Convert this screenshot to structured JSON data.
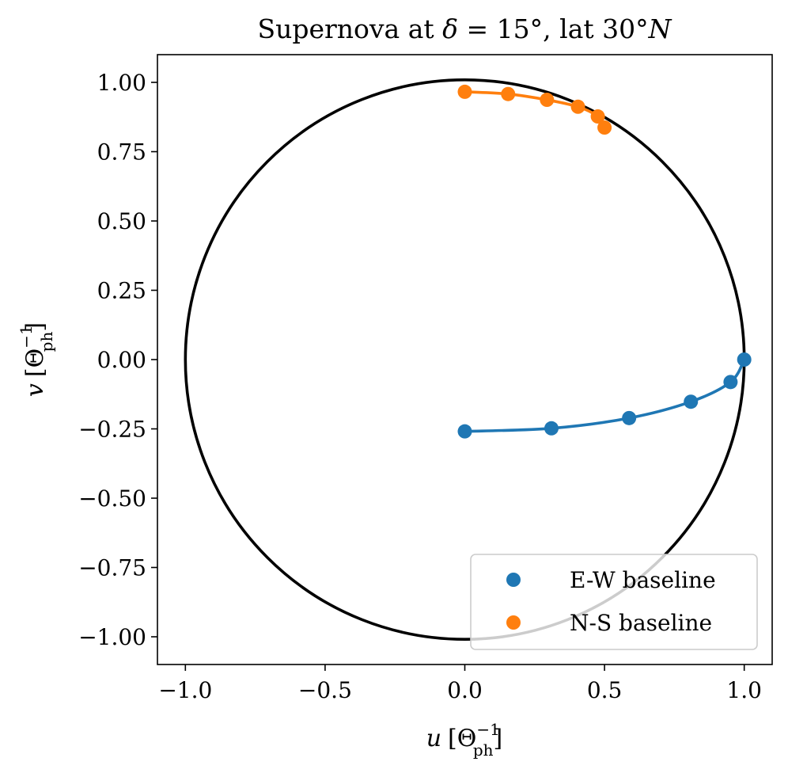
{
  "chart_data": {
    "type": "scatter",
    "title": {
      "prefix": "Supernova at ",
      "delta_symbol": "δ",
      "equals": " = ",
      "declination": "15°",
      "mid": ", lat ",
      "latitude": "30°",
      "lat_symbol": "N"
    },
    "xlabel": {
      "symbol": "u",
      "bracket_open": "[",
      "theta": "Θ",
      "superscript": "−1",
      "subscript": "ph",
      "bracket_close": "]"
    },
    "ylabel": {
      "symbol": "v",
      "bracket_open": "[",
      "theta": "Θ",
      "superscript": "−1",
      "subscript": "ph",
      "bracket_close": "]"
    },
    "xlim": [
      -1.1,
      1.1
    ],
    "ylim": [
      -1.1,
      1.1
    ],
    "x_ticks": [
      {
        "value": -1.0,
        "label": "−1.0"
      },
      {
        "value": -0.5,
        "label": "−0.5"
      },
      {
        "value": 0.0,
        "label": "0.0"
      },
      {
        "value": 0.5,
        "label": "0.5"
      },
      {
        "value": 1.0,
        "label": "1.0"
      }
    ],
    "y_ticks": [
      {
        "value": 1.0,
        "label": "1.00"
      },
      {
        "value": 0.75,
        "label": "0.75"
      },
      {
        "value": 0.5,
        "label": "0.50"
      },
      {
        "value": 0.25,
        "label": "0.25"
      },
      {
        "value": 0.0,
        "label": "0.00"
      },
      {
        "value": -0.25,
        "label": "−0.25"
      },
      {
        "value": -0.5,
        "label": "−0.50"
      },
      {
        "value": -0.75,
        "label": "−0.75"
      },
      {
        "value": -1.0,
        "label": "−1.00"
      }
    ],
    "reference_circle": {
      "radius": 1.0,
      "color": "#000000"
    },
    "grid": false,
    "legend_position": "lower-right",
    "series": [
      {
        "name": "E-W baseline",
        "color": "#1f77b4",
        "points": [
          {
            "x": 0.0,
            "y": -0.259
          },
          {
            "x": 0.31,
            "y": -0.248
          },
          {
            "x": 0.588,
            "y": -0.211
          },
          {
            "x": 0.809,
            "y": -0.152
          },
          {
            "x": 0.951,
            "y": -0.081
          },
          {
            "x": 1.0,
            "y": 0.0
          }
        ],
        "curve": {
          "formula": "u = sin(H), v = -sin(15°)·cos(H)",
          "h_range_deg": [
            0,
            90
          ]
        }
      },
      {
        "name": "N-S baseline",
        "color": "#ff7f0e",
        "points": [
          {
            "x": 0.0,
            "y": 0.966
          },
          {
            "x": 0.155,
            "y": 0.958
          },
          {
            "x": 0.294,
            "y": 0.937
          },
          {
            "x": 0.405,
            "y": 0.912
          },
          {
            "x": 0.476,
            "y": 0.877
          },
          {
            "x": 0.5,
            "y": 0.837
          }
        ],
        "curve": {
          "formula": "u = cos(30°)… projected",
          "h_range_deg": [
            0,
            90
          ]
        }
      }
    ]
  }
}
